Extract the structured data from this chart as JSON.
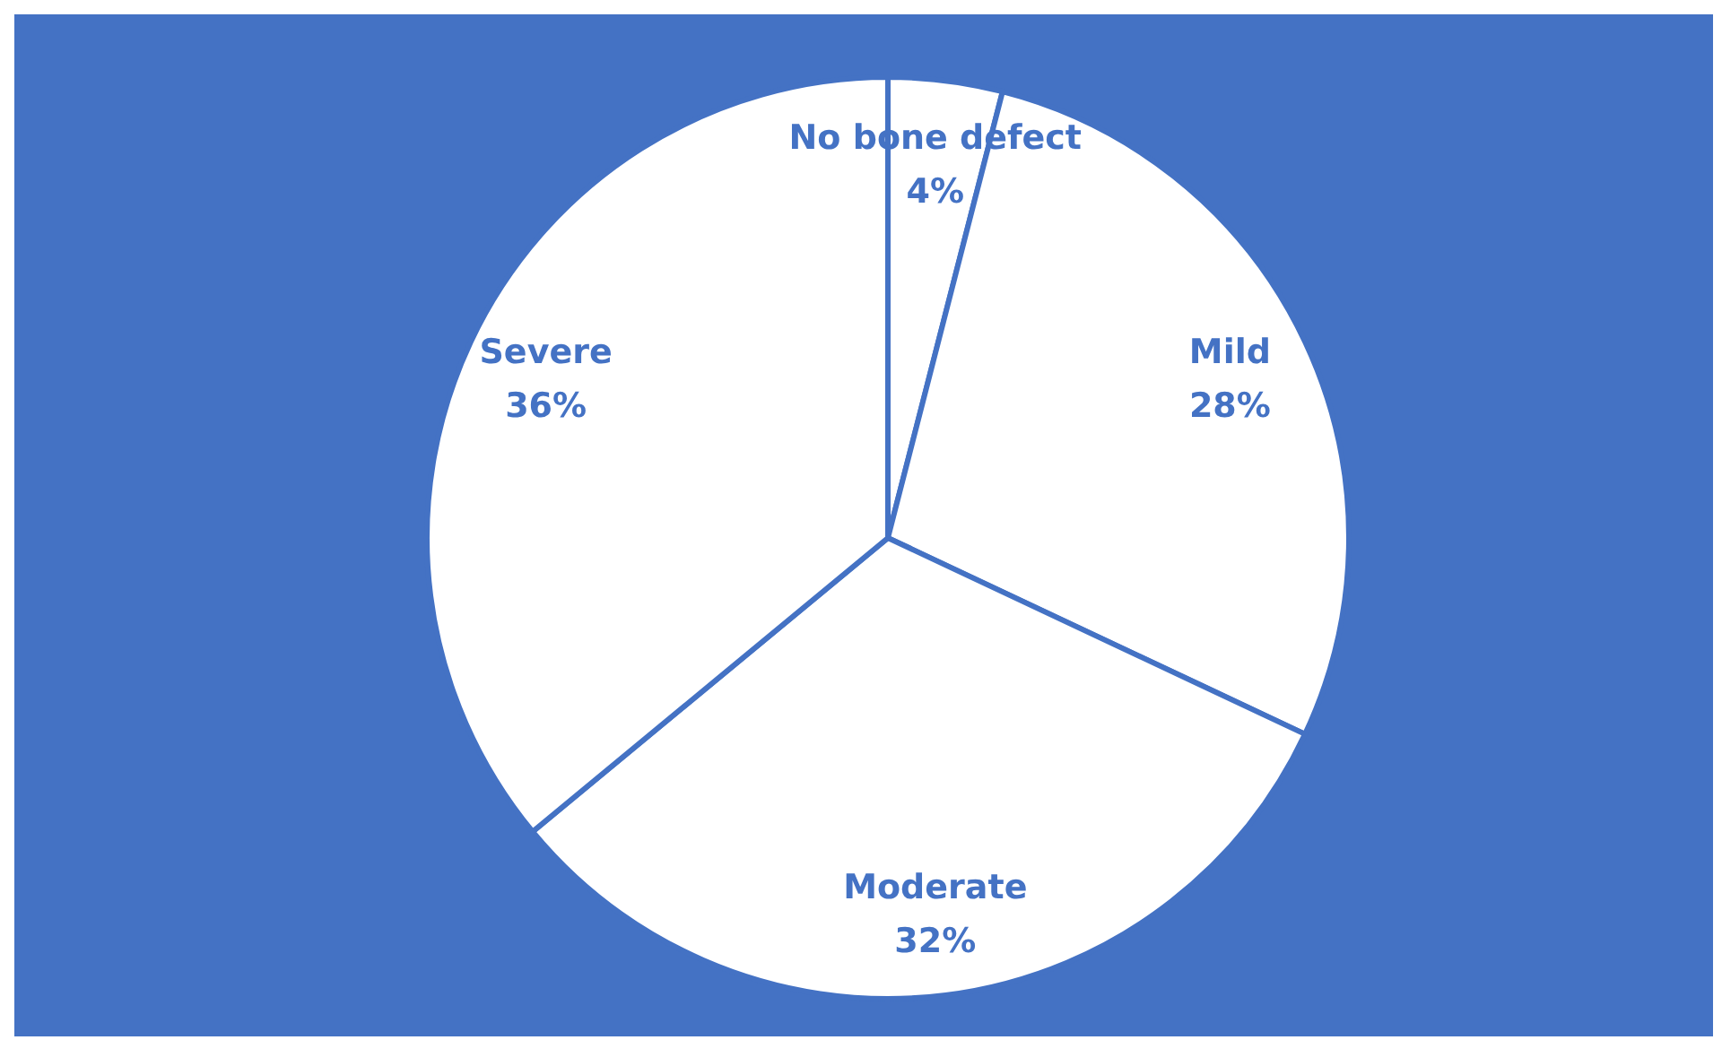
{
  "chart_data": {
    "type": "pie",
    "categories": [
      "No bone defect",
      "Mild",
      "Moderate",
      "Severe"
    ],
    "values": [
      4,
      28,
      32,
      36
    ],
    "colors": [
      "#ffffff",
      "#ffffff",
      "#ffffff",
      "#ffffff"
    ],
    "value_labels": [
      "4%",
      "28%",
      "32%",
      "36%"
    ],
    "legend": false
  }
}
